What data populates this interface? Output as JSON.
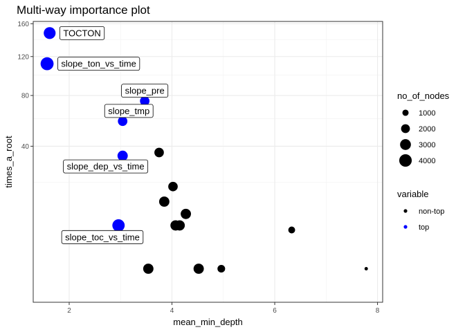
{
  "chart_data": {
    "type": "scatter",
    "title": "Multi-way importance plot",
    "xlabel": "mean_min_depth",
    "ylabel": "times_a_root",
    "xlim": [
      1.3,
      8.1
    ],
    "ylim": [
      -3,
      163
    ],
    "y_scale": "sqrt",
    "x_ticks": [
      2,
      4,
      6,
      8
    ],
    "y_ticks": [
      40,
      80,
      120,
      160
    ],
    "grid": true,
    "legend_position": "right",
    "size_legend": {
      "title": "no_of_nodes",
      "entries": [
        {
          "label": "1000",
          "value": 1000
        },
        {
          "label": "2000",
          "value": 2000
        },
        {
          "label": "3000",
          "value": 3000
        },
        {
          "label": "4000",
          "value": 4000
        }
      ]
    },
    "color_legend": {
      "title": "variable",
      "entries": [
        {
          "label": "non-top",
          "color": "#000000"
        },
        {
          "label": "top",
          "color": "#0000ff"
        }
      ]
    },
    "points": [
      {
        "x": 1.62,
        "y": 148,
        "size": 3600,
        "group": "top",
        "label": "TOCTON"
      },
      {
        "x": 1.57,
        "y": 112,
        "size": 4300,
        "group": "top",
        "label": "slope_ton_vs_time"
      },
      {
        "x": 3.47,
        "y": 75,
        "size": 2300,
        "group": "top",
        "label": "slope_pre"
      },
      {
        "x": 3.04,
        "y": 58,
        "size": 2300,
        "group": "top",
        "label": "slope_tmp"
      },
      {
        "x": 3.04,
        "y": 34,
        "size": 2700,
        "group": "top",
        "label": "slope_dep_vs_time"
      },
      {
        "x": 2.96,
        "y": 5,
        "size": 3900,
        "group": "top",
        "label": "slope_toc_vs_time"
      },
      {
        "x": 3.75,
        "y": 36,
        "size": 2300,
        "group": "non-top",
        "label": ""
      },
      {
        "x": 4.02,
        "y": 18,
        "size": 2300,
        "group": "non-top",
        "label": ""
      },
      {
        "x": 3.85,
        "y": 12,
        "size": 2700,
        "group": "non-top",
        "label": ""
      },
      {
        "x": 4.27,
        "y": 8,
        "size": 2700,
        "group": "non-top",
        "label": ""
      },
      {
        "x": 6.33,
        "y": 4,
        "size": 1200,
        "group": "non-top",
        "label": ""
      },
      {
        "x": 4.07,
        "y": 5,
        "size": 2700,
        "group": "non-top",
        "label": ""
      },
      {
        "x": 4.15,
        "y": 5,
        "size": 2700,
        "group": "non-top",
        "label": ""
      },
      {
        "x": 3.54,
        "y": 0,
        "size": 2700,
        "group": "non-top",
        "label": ""
      },
      {
        "x": 4.52,
        "y": 0,
        "size": 2700,
        "group": "non-top",
        "label": ""
      },
      {
        "x": 4.96,
        "y": 0,
        "size": 1500,
        "group": "non-top",
        "label": ""
      },
      {
        "x": 7.78,
        "y": 0,
        "size": 300,
        "group": "non-top",
        "label": ""
      }
    ]
  }
}
